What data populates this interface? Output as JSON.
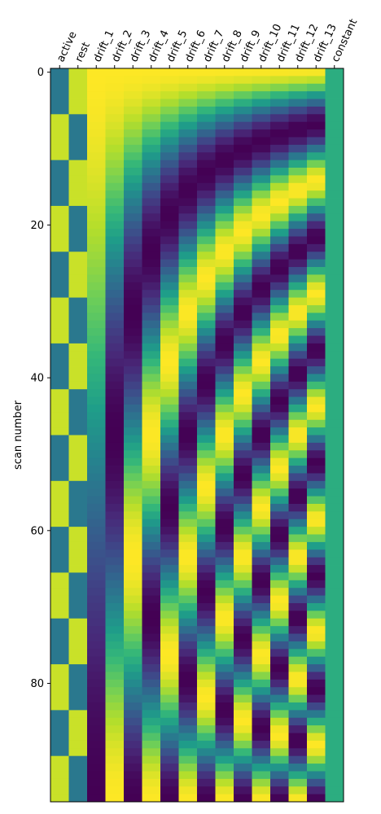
{
  "chart_data": {
    "type": "heatmap",
    "title": "",
    "xlabel": "",
    "ylabel": "scan number",
    "columns": [
      "active",
      "rest",
      "drift_1",
      "drift_2",
      "drift_3",
      "drift_4",
      "drift_5",
      "drift_6",
      "drift_7",
      "drift_8",
      "drift_9",
      "drift_10",
      "drift_11",
      "drift_12",
      "drift_13",
      "constant"
    ],
    "n_scans": 96,
    "y_ticks": [
      0,
      20,
      40,
      60,
      80
    ],
    "ylim": [
      95.5,
      -0.5
    ],
    "colormap": "viridis",
    "block_design": {
      "block_length_scans": 6,
      "first_block": "rest",
      "active_value_range": [
        0.0,
        1.0
      ],
      "rest_value_range": [
        0.0,
        1.0
      ]
    },
    "drift_model": "cosine",
    "constant_value": 1,
    "grid": false,
    "legend": "none"
  },
  "colors": {
    "viridis": [
      "#440154",
      "#482878",
      "#3e4989",
      "#31688e",
      "#26828e",
      "#1f9e89",
      "#35b779",
      "#6ece58",
      "#b5de2b",
      "#fde725"
    ],
    "axis": "#000000",
    "background": "#ffffff"
  }
}
